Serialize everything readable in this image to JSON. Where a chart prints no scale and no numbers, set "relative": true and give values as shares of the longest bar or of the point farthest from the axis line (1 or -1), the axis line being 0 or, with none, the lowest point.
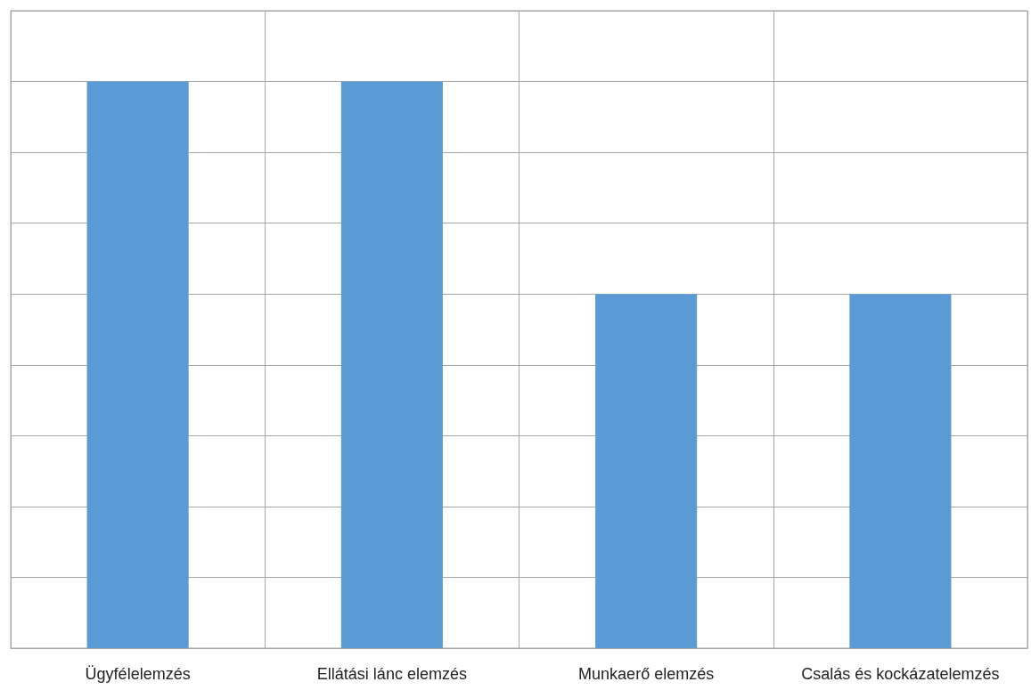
{
  "chart_data": {
    "type": "bar",
    "relative": true,
    "grid": true,
    "categories": [
      "Ügyfélelemzés",
      "Ellátási lánc elemzés",
      "Munkaerő elemzés",
      "Csalás és kockázatelemzés"
    ],
    "series": [
      {
        "color": "#5b9bd5",
        "values": [
          1,
          1,
          0.625,
          0.625
        ]
      }
    ]
  }
}
